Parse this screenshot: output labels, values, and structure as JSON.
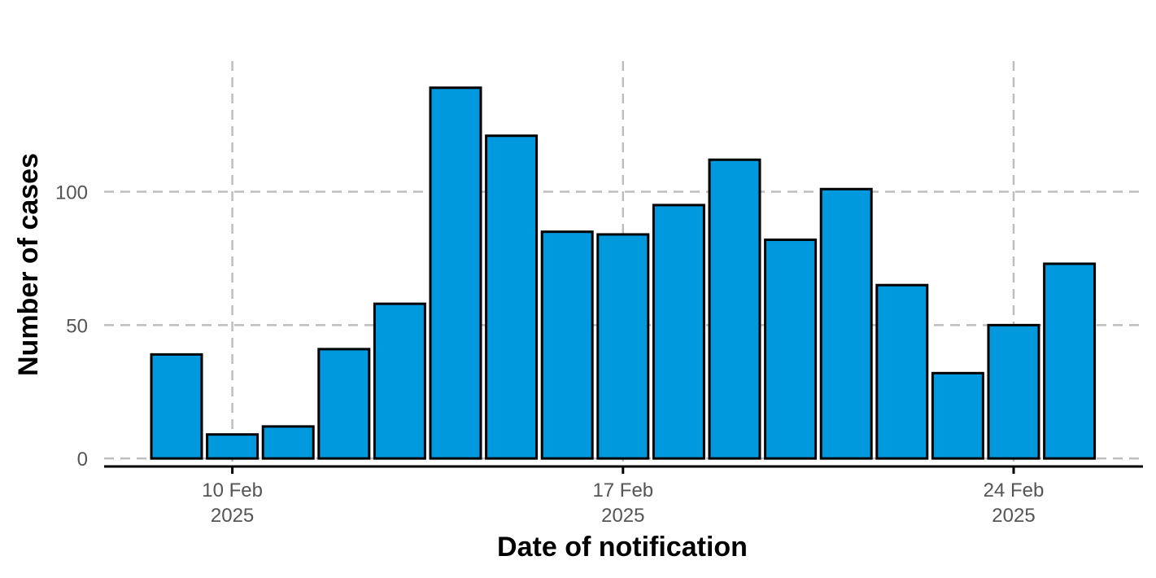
{
  "chart_data": {
    "type": "bar",
    "title": "",
    "xlabel": "Date of notification",
    "ylabel": "Number of cases",
    "x": [
      "2025-02-09",
      "2025-02-10",
      "2025-02-11",
      "2025-02-12",
      "2025-02-13",
      "2025-02-14",
      "2025-02-15",
      "2025-02-16",
      "2025-02-17",
      "2025-02-18",
      "2025-02-19",
      "2025-02-20",
      "2025-02-21",
      "2025-02-22",
      "2025-02-23",
      "2025-02-24",
      "2025-02-25"
    ],
    "values": [
      39,
      9,
      12,
      41,
      58,
      139,
      121,
      85,
      84,
      95,
      112,
      82,
      101,
      65,
      32,
      50,
      73
    ],
    "ylim": [
      -3,
      149
    ],
    "yticks": [
      0,
      50,
      100
    ],
    "xticks": [
      {
        "x": "2025-02-10",
        "line1": "10 Feb",
        "line2": "2025"
      },
      {
        "x": "2025-02-17",
        "line1": "17 Feb",
        "line2": "2025"
      },
      {
        "x": "2025-02-24",
        "line1": "24 Feb",
        "line2": "2025"
      }
    ],
    "grid": true,
    "bar_color": "#0099DD",
    "bar_outline": "#000000",
    "grid_color": "#BEBEBE"
  }
}
